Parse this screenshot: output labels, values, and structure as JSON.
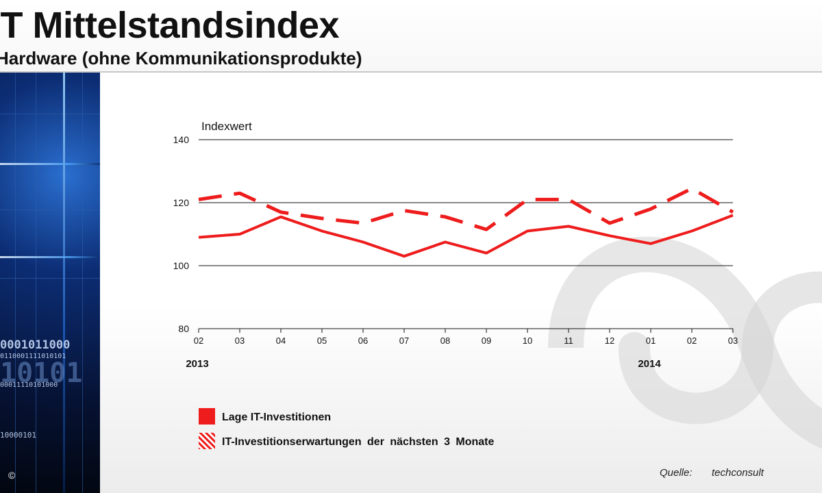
{
  "header": {
    "title": "IT Mittelstandsindex",
    "subtitle": "Hardware (ohne Kommunikationsprodukte)"
  },
  "side_panel": {
    "binary_lines": [
      "0001011000",
      "0110001111010101",
      "10101",
      "00011110101000",
      "10000101"
    ],
    "copyright": "©"
  },
  "source": {
    "label": "Quelle:",
    "value": "techconsult"
  },
  "colors": {
    "series": "#ee1c1c",
    "text": "#111111",
    "gridline": "#111111"
  },
  "chart_data": {
    "type": "line",
    "ylabel": "Indexwert",
    "ylim": [
      80,
      140
    ],
    "yticks": [
      80,
      100,
      120,
      140
    ],
    "x": [
      "02",
      "03",
      "04",
      "05",
      "06",
      "07",
      "08",
      "09",
      "10",
      "11",
      "12",
      "01",
      "02",
      "03"
    ],
    "year_labels": [
      {
        "at_index": 0,
        "label": "2013"
      },
      {
        "at_index": 11,
        "label": "2014"
      }
    ],
    "grid": "horizontal",
    "legend_position": "bottom-left",
    "series": [
      {
        "name": "Lage IT-Investitionen",
        "style": "solid",
        "values": [
          109,
          110,
          115.5,
          111,
          107.5,
          103,
          107.5,
          104,
          111,
          112.5,
          109.5,
          107,
          111,
          116
        ]
      },
      {
        "name": "IT-Investitionserwartungen der nächsten 3 Monate",
        "style": "dashed",
        "values": [
          121,
          123,
          117,
          115,
          113.5,
          117.5,
          115.5,
          111.5,
          121,
          121,
          113.5,
          118,
          124.5,
          117
        ]
      }
    ]
  }
}
